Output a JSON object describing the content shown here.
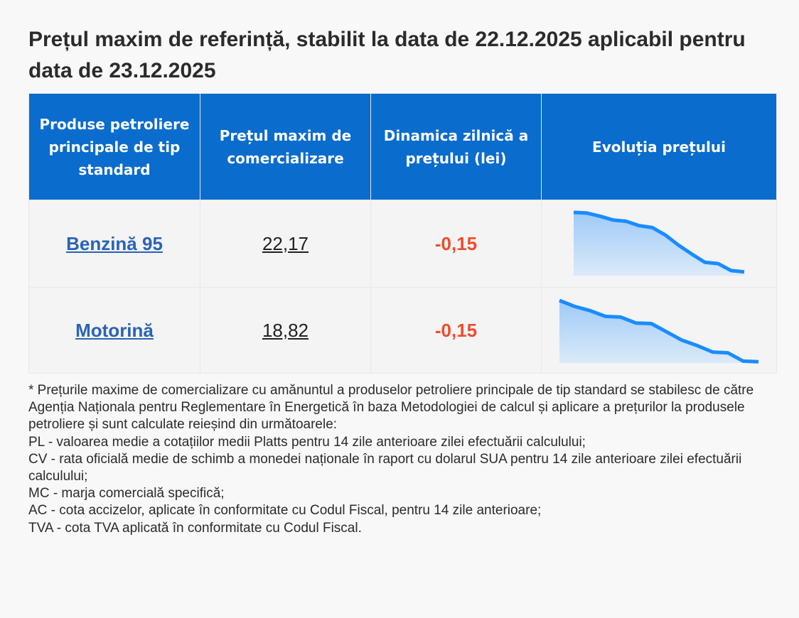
{
  "title": "Prețul maxim de referință, stabilit la data de 22.12.2025 aplicabil pentru data de 23.12.2025",
  "table": {
    "headers": [
      "Produse petroliere principale de tip standard",
      "Prețul maxim de comercializare",
      "Dinamica zilnică a prețului (lei)",
      "Evoluția prețului"
    ],
    "rows": [
      {
        "product": "Benzină 95",
        "price": "22,17",
        "delta": "-0,15"
      },
      {
        "product": "Motorină",
        "price": "18,82",
        "delta": "-0,15"
      }
    ]
  },
  "chart_data": [
    {
      "type": "area",
      "series": [
        {
          "values": [
            100,
            99,
            94,
            88,
            86,
            79,
            76,
            64,
            48,
            34,
            21,
            19,
            8,
            6
          ]
        }
      ],
      "color": "#1a8cff"
    },
    {
      "type": "area",
      "series": [
        {
          "values": [
            100,
            90.5,
            83.7,
            74.5,
            73.4,
            63.9,
            63.1,
            49.8,
            36.5,
            27.8,
            17.5,
            16.3,
            3,
            1.9
          ]
        }
      ],
      "color": "#1a8cff"
    }
  ],
  "note": {
    "lines": [
      "* Prețurile maxime de comercializare cu amănuntul a produselor petroliere principale de tip standard se stabilesc de către Agenția Naționala pentru Reglementare în Energetică în baza Metodologiei de calcul și aplicare a prețurilor la produsele petroliere și sunt calculate reieșind din următoarele:",
      "PL - valoarea medie a cotațiilor medii Platts pentru 14 zile anterioare zilei efectuării calculului;",
      "CV - rata oficială medie de schimb a monedei naționale în raport cu dolarul SUA pentru 14 zile anterioare zilei efectuării calculului;",
      "MC - marja comercială specifică;",
      "AC - cota accizelor, aplicate în conformitate cu Codul Fiscal, pentru 14 zile anterioare;",
      "TVA - cota TVA aplicată în conformitate cu Codul Fiscal."
    ]
  }
}
